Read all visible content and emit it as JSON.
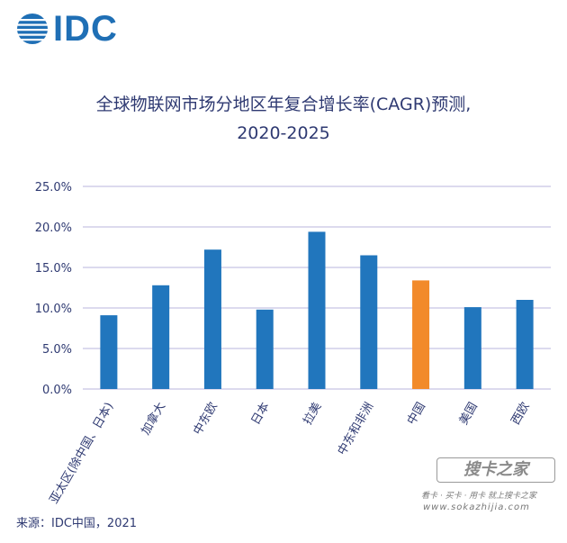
{
  "logo": {
    "text": "IDC"
  },
  "title": {
    "line1": "全球物联网市场分地区年复合增长率(CAGR)预测,",
    "line2": "2020-2025"
  },
  "source": "来源：IDC中国，2021",
  "watermark": {
    "brand": "搜卡之家",
    "slogan": "看卡 · 买卡 · 用卡 就上搜卡之家",
    "url": "www.sokazhijia.com"
  },
  "colors": {
    "bar": "#2176bd",
    "highlight": "#f28a2a",
    "grid": "#b9b4dd",
    "text": "#2f3a72"
  },
  "chart_data": {
    "type": "bar",
    "title": "全球物联网市场分地区年复合增长率(CAGR)预测, 2020-2025",
    "categories": [
      "亚太区(除中国、日本)",
      "加拿大",
      "中东欧",
      "日本",
      "拉美",
      "中东和非洲",
      "中国",
      "美国",
      "西欧"
    ],
    "values": [
      9.1,
      12.8,
      17.2,
      9.8,
      19.4,
      16.5,
      13.4,
      10.1,
      11.0
    ],
    "highlight_category": "中国",
    "ylim": [
      0,
      25
    ],
    "yticks": [
      "0.0%",
      "5.0%",
      "10.0%",
      "15.0%",
      "20.0%",
      "25.0%"
    ],
    "ytick_values": [
      0,
      5,
      10,
      15,
      20,
      25
    ],
    "grid": true,
    "xlabel": "",
    "ylabel": ""
  }
}
